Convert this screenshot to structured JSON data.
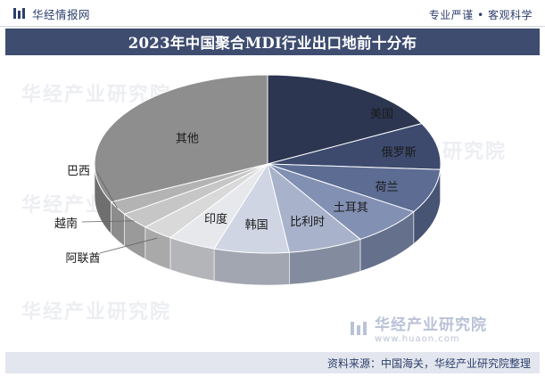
{
  "header": {
    "site_name": "华经情报网",
    "tagline": "专业严谨 • 客观科学"
  },
  "title": "2023年中国聚合MDI行业出口地前十分布",
  "watermark": {
    "name": "华经产业研究院",
    "url": "www.huaon.com"
  },
  "footer": {
    "source": "资料来源：中国海关，华经产业研究院整理"
  },
  "colors": {
    "title_bg": "#3e4c70",
    "footer_bg": "#e3e6ee"
  },
  "chart_data": {
    "type": "pie",
    "title": "2023年中国聚合MDI行业出口地前十分布",
    "legend": "none",
    "slices": [
      {
        "label": "美国",
        "value": 17.5,
        "color": "#2c3651"
      },
      {
        "label": "俄罗斯",
        "value": 8.5,
        "color": "#3d4a6e"
      },
      {
        "label": "荷兰",
        "value": 8.0,
        "color": "#5c6c93"
      },
      {
        "label": "土耳其",
        "value": 7.0,
        "color": "#8290b3"
      },
      {
        "label": "比利时",
        "value": 7.0,
        "color": "#a8b3cb"
      },
      {
        "label": "韩国",
        "value": 7.0,
        "color": "#cfd5e3"
      },
      {
        "label": "印度",
        "value": 4.5,
        "color": "#e6e8ec"
      },
      {
        "label": "阿联酋",
        "value": 3.0,
        "color": "#d9d9d9"
      },
      {
        "label": "越南",
        "value": 3.0,
        "color": "#c6c6c6"
      },
      {
        "label": "巴西",
        "value": 2.5,
        "color": "#b3b3b3"
      },
      {
        "label": "其他",
        "value": 32.0,
        "color": "#8e8e8e"
      }
    ]
  }
}
